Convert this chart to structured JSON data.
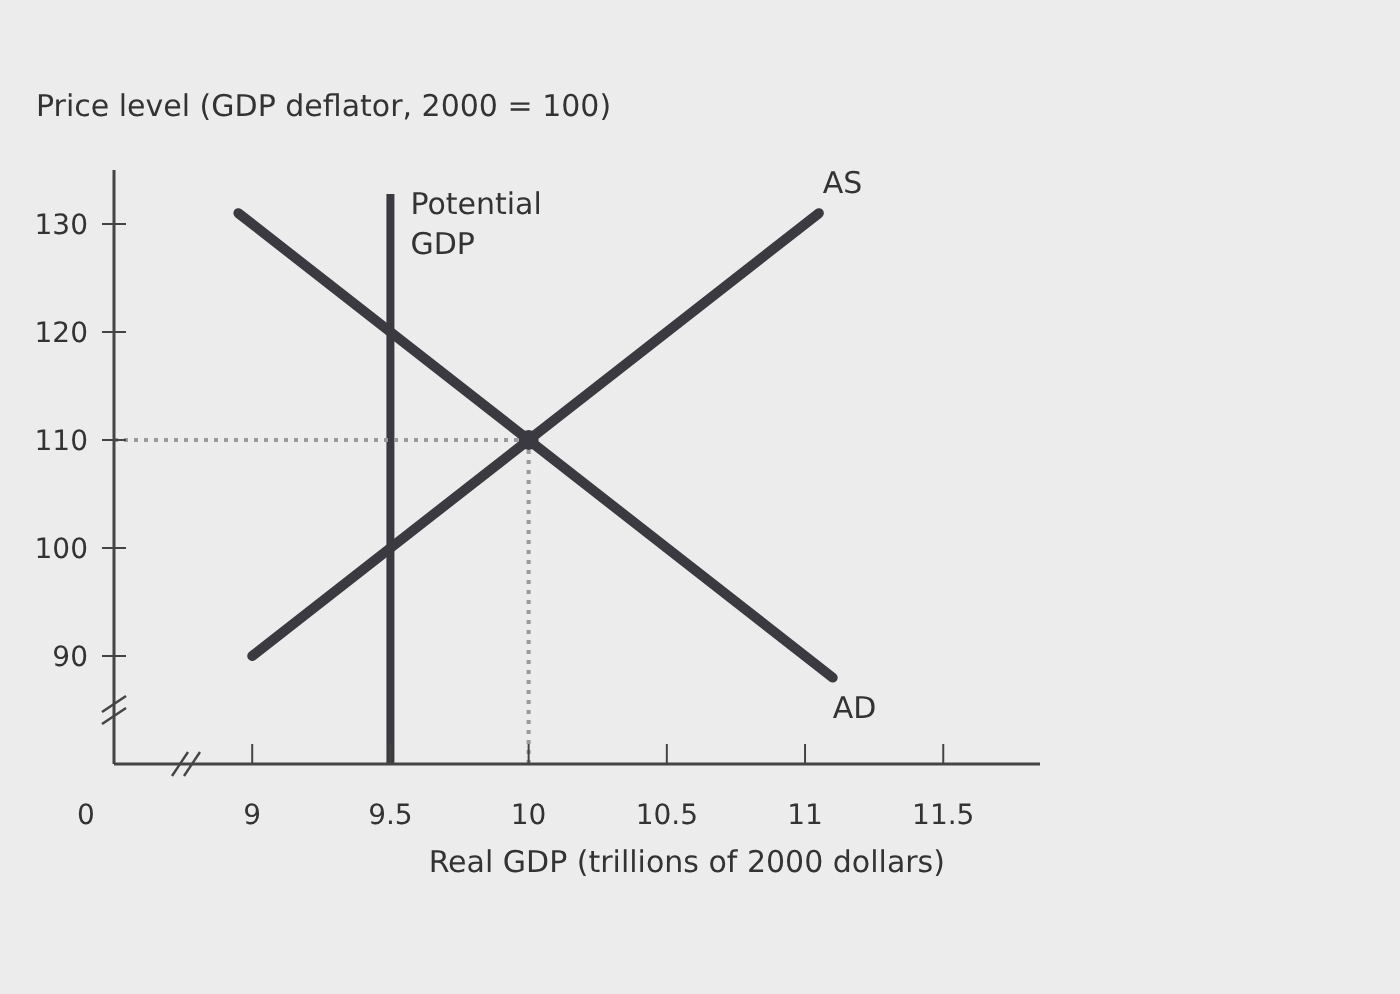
{
  "chart_data": {
    "type": "line",
    "ylabel": "Price level (GDP deflator, 2000 = 100)",
    "xlabel": "Real GDP (trillions of 2000 dollars)",
    "xlim": [
      8.5,
      11.85
    ],
    "ylim": [
      80,
      135
    ],
    "xticks": [
      9,
      9.5,
      10,
      10.5,
      11,
      11.5
    ],
    "yticks": [
      90,
      100,
      110,
      120,
      130
    ],
    "series": [
      {
        "name": "AS",
        "color": "#3a3a40",
        "x": [
          9.0,
          11.05
        ],
        "values": [
          90,
          131
        ]
      },
      {
        "name": "AD",
        "color": "#3a3a40",
        "x": [
          8.95,
          11.1
        ],
        "values": [
          131,
          88
        ]
      },
      {
        "type": "scatter",
        "color": "#3a3a40",
        "x": [
          10
        ],
        "values": [
          110
        ],
        "marker": "circle"
      }
    ],
    "ref_lines": [
      {
        "axis": "x",
        "value": 9.5,
        "label": "Potential GDP",
        "color": "#3a3a40",
        "line_style": "solid"
      },
      {
        "axis": "y",
        "value": 110,
        "color": "#9a9a9a",
        "line_style": "dotted"
      },
      {
        "axis": "x",
        "value": 10,
        "color": "#9a9a9a",
        "line_style": "dotted"
      }
    ],
    "annotations": [
      "0"
    ]
  }
}
